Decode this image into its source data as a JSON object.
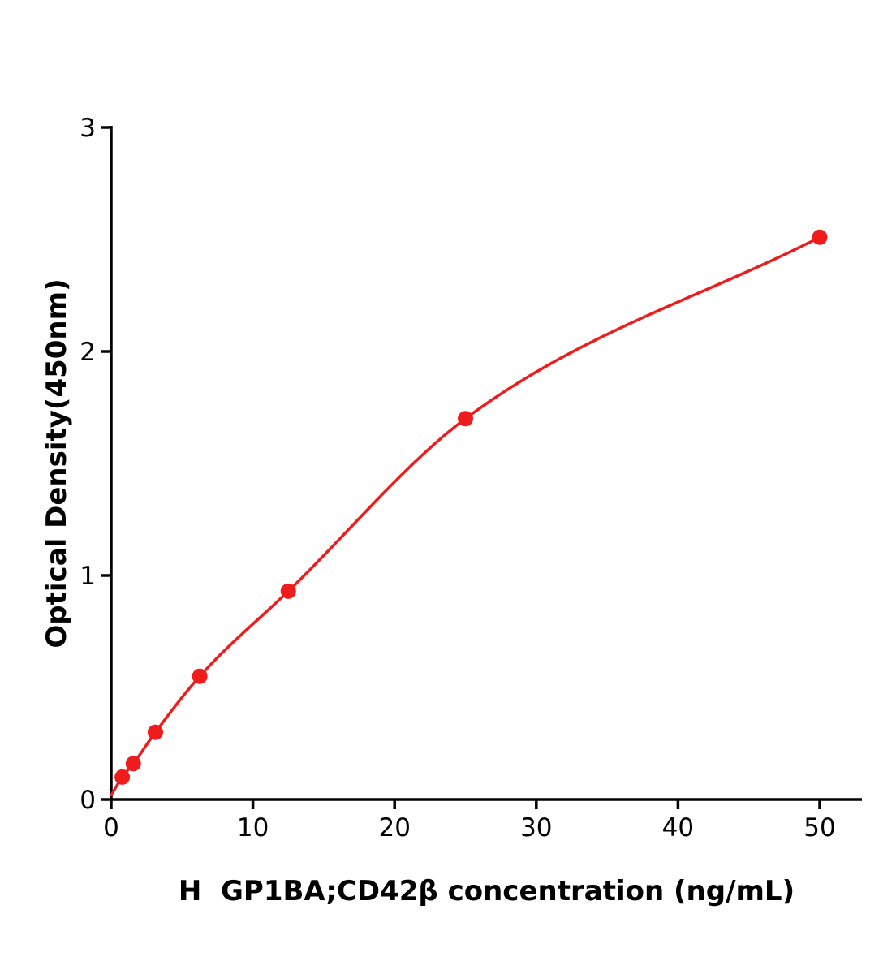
{
  "figure": {
    "background": "#ffffff"
  },
  "chart_data": {
    "type": "scatter",
    "title": "",
    "xlabel": "H  GP1BA;CD42β concentration (ng/mL)",
    "ylabel": "Optical Density(450nm)",
    "x": [
      0.78,
      1.56,
      3.12,
      6.25,
      12.5,
      25,
      50
    ],
    "y": [
      0.1,
      0.16,
      0.3,
      0.55,
      0.93,
      1.7,
      2.51
    ],
    "curve_start": [
      0,
      0.02
    ],
    "xlim": [
      0,
      50
    ],
    "ylim": [
      0,
      3
    ],
    "xticks": [
      0,
      10,
      20,
      30,
      40,
      50
    ],
    "yticks": [
      0,
      1,
      2,
      3
    ],
    "grid": false,
    "legend": null,
    "line_color": "#ee1c1c",
    "marker_color": "#ee1c1c",
    "axis_color": "#000000",
    "marker_radius": 9.5,
    "line_width": 3.5
  }
}
